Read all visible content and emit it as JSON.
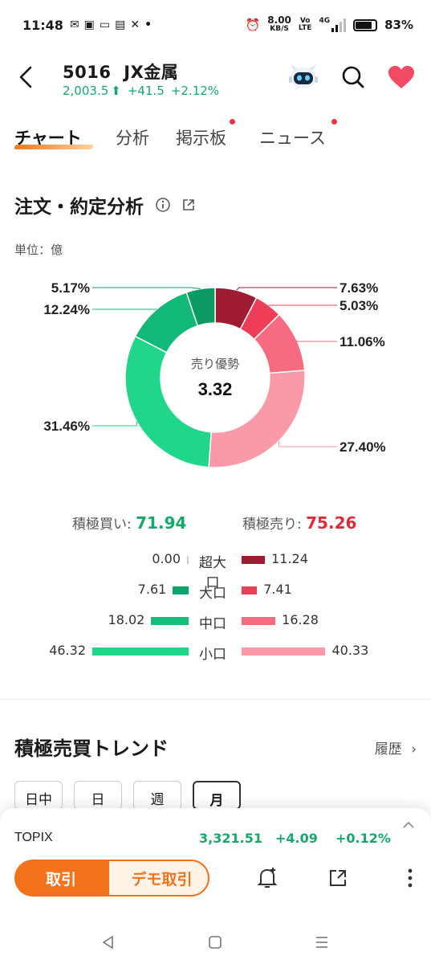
{
  "status_bar": {
    "time": "11:48",
    "net_speed_value": "8.00",
    "net_speed_unit": "KB/S",
    "volte_top": "Vo",
    "volte_bottom": "LTE",
    "network": "4G",
    "battery_percent": "83%",
    "battery_level": 0.83
  },
  "header": {
    "stock_code": "5016",
    "stock_name": "JX金属",
    "price": "2,003.5",
    "change": "+41.5",
    "change_pct": "+2.12%"
  },
  "tabs": [
    {
      "label": "チャート",
      "active": true,
      "badge": false
    },
    {
      "label": "分析",
      "active": false,
      "badge": false
    },
    {
      "label": "掲示板",
      "active": false,
      "badge": true
    },
    {
      "label": "ニュース",
      "active": false,
      "badge": true
    }
  ],
  "order_analysis": {
    "title": "注文・約定分析",
    "unit": "単位：億",
    "center_label": "売り優勢",
    "center_value": "3.32"
  },
  "chart_data": {
    "type": "pie",
    "variant": "donut",
    "center_label": "売り優勢",
    "center_value": "3.32",
    "slices": [
      {
        "category": "超大口",
        "side": "sell",
        "value": 7.63,
        "label": "7.63%",
        "color": "#9e1b32"
      },
      {
        "category": "大口",
        "side": "sell",
        "value": 5.03,
        "label": "5.03%",
        "color": "#ee3d57"
      },
      {
        "category": "中口",
        "side": "sell",
        "value": 11.06,
        "label": "11.06%",
        "color": "#f76b80"
      },
      {
        "category": "小口",
        "side": "sell",
        "value": 27.4,
        "label": "27.40%",
        "color": "#fa9aa8"
      },
      {
        "category": "小口",
        "side": "buy",
        "value": 31.46,
        "label": "31.46%",
        "color": "#1fd68a"
      },
      {
        "category": "中口",
        "side": "buy",
        "value": 12.24,
        "label": "12.24%",
        "color": "#12b877"
      },
      {
        "category": "大口",
        "side": "buy",
        "value": 5.17,
        "label": "5.17%",
        "color": "#0a9a62"
      }
    ]
  },
  "summary": {
    "buy_label": "積極買い:",
    "buy_value": "71.94",
    "sell_label": "積極売り:",
    "sell_value": "75.26"
  },
  "breakdown": {
    "scale_max": 46.32,
    "rows": [
      {
        "category": "超大口",
        "buy": 0.0,
        "buy_label": "0.00",
        "sell": 11.24,
        "sell_label": "11.24",
        "buy_color": "#0a9a62",
        "sell_color": "#9e1b32"
      },
      {
        "category": "大口",
        "buy": 7.61,
        "buy_label": "7.61",
        "sell": 7.41,
        "sell_label": "7.41",
        "buy_color": "#0aa56a",
        "sell_color": "#ee3d57"
      },
      {
        "category": "中口",
        "buy": 18.02,
        "buy_label": "18.02",
        "sell": 16.28,
        "sell_label": "16.28",
        "buy_color": "#12c07c",
        "sell_color": "#f76b80"
      },
      {
        "category": "小口",
        "buy": 46.32,
        "buy_label": "46.32",
        "sell": 40.33,
        "sell_label": "40.33",
        "buy_color": "#1fd68a",
        "sell_color": "#fa9aa8"
      }
    ]
  },
  "trend": {
    "title": "積極売買トレンド",
    "history_label": "履歴",
    "periods": [
      {
        "label": "日中",
        "active": false
      },
      {
        "label": "日",
        "active": false
      },
      {
        "label": "週",
        "active": false
      },
      {
        "label": "月",
        "active": true
      }
    ]
  },
  "ticker": {
    "name": "TOPIX",
    "value": "3,321.51",
    "change": "+4.09",
    "change_pct": "+0.12%"
  },
  "actions": {
    "trade_label": "取引",
    "demo_label": "デモ取引"
  },
  "colors": {
    "accent": "#f2731b",
    "up": "#15a86b",
    "down": "#e02a3a"
  }
}
